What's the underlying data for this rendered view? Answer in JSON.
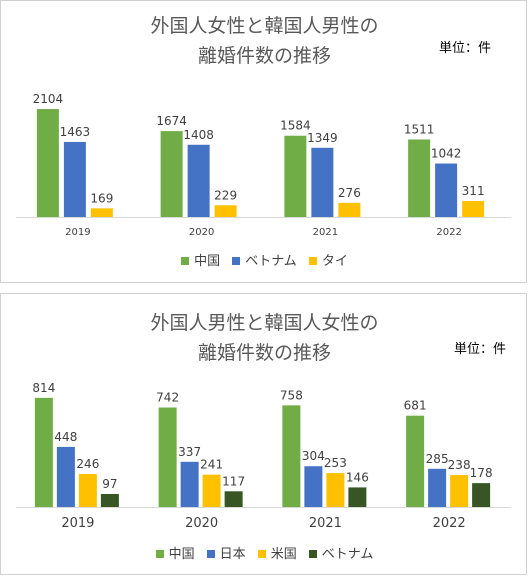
{
  "chart_data": [
    {
      "type": "bar",
      "title_lines": [
        "外国人女性と韓国人男性の",
        "離婚件数の推移"
      ],
      "unit_label": "単位：件",
      "categories": [
        "2019",
        "2020",
        "2021",
        "2022"
      ],
      "series": [
        {
          "name": "中国",
          "color": "#70ad47",
          "values": [
            2104,
            1674,
            1584,
            1511
          ]
        },
        {
          "name": "ベトナム",
          "color": "#4472c4",
          "values": [
            1463,
            1408,
            1349,
            1042
          ]
        },
        {
          "name": "タイ",
          "color": "#ffc000",
          "values": [
            169,
            229,
            276,
            311
          ]
        }
      ],
      "ylim": [
        0,
        2300
      ],
      "legend_position": "bottom"
    },
    {
      "type": "bar",
      "title_lines": [
        "外国人男性と韓国人女性の",
        "離婚件数の推移"
      ],
      "unit_label": "単位：件",
      "categories": [
        "2019",
        "2020",
        "2021",
        "2022"
      ],
      "series": [
        {
          "name": "中国",
          "color": "#70ad47",
          "values": [
            814,
            742,
            758,
            681
          ]
        },
        {
          "name": "日本",
          "color": "#4472c4",
          "values": [
            448,
            337,
            304,
            285
          ]
        },
        {
          "name": "米国",
          "color": "#ffc000",
          "values": [
            246,
            241,
            253,
            238
          ]
        },
        {
          "name": "ベトナム",
          "color": "#375623",
          "values": [
            97,
            117,
            146,
            178
          ]
        }
      ],
      "ylim": [
        0,
        880
      ],
      "legend_position": "bottom"
    }
  ]
}
